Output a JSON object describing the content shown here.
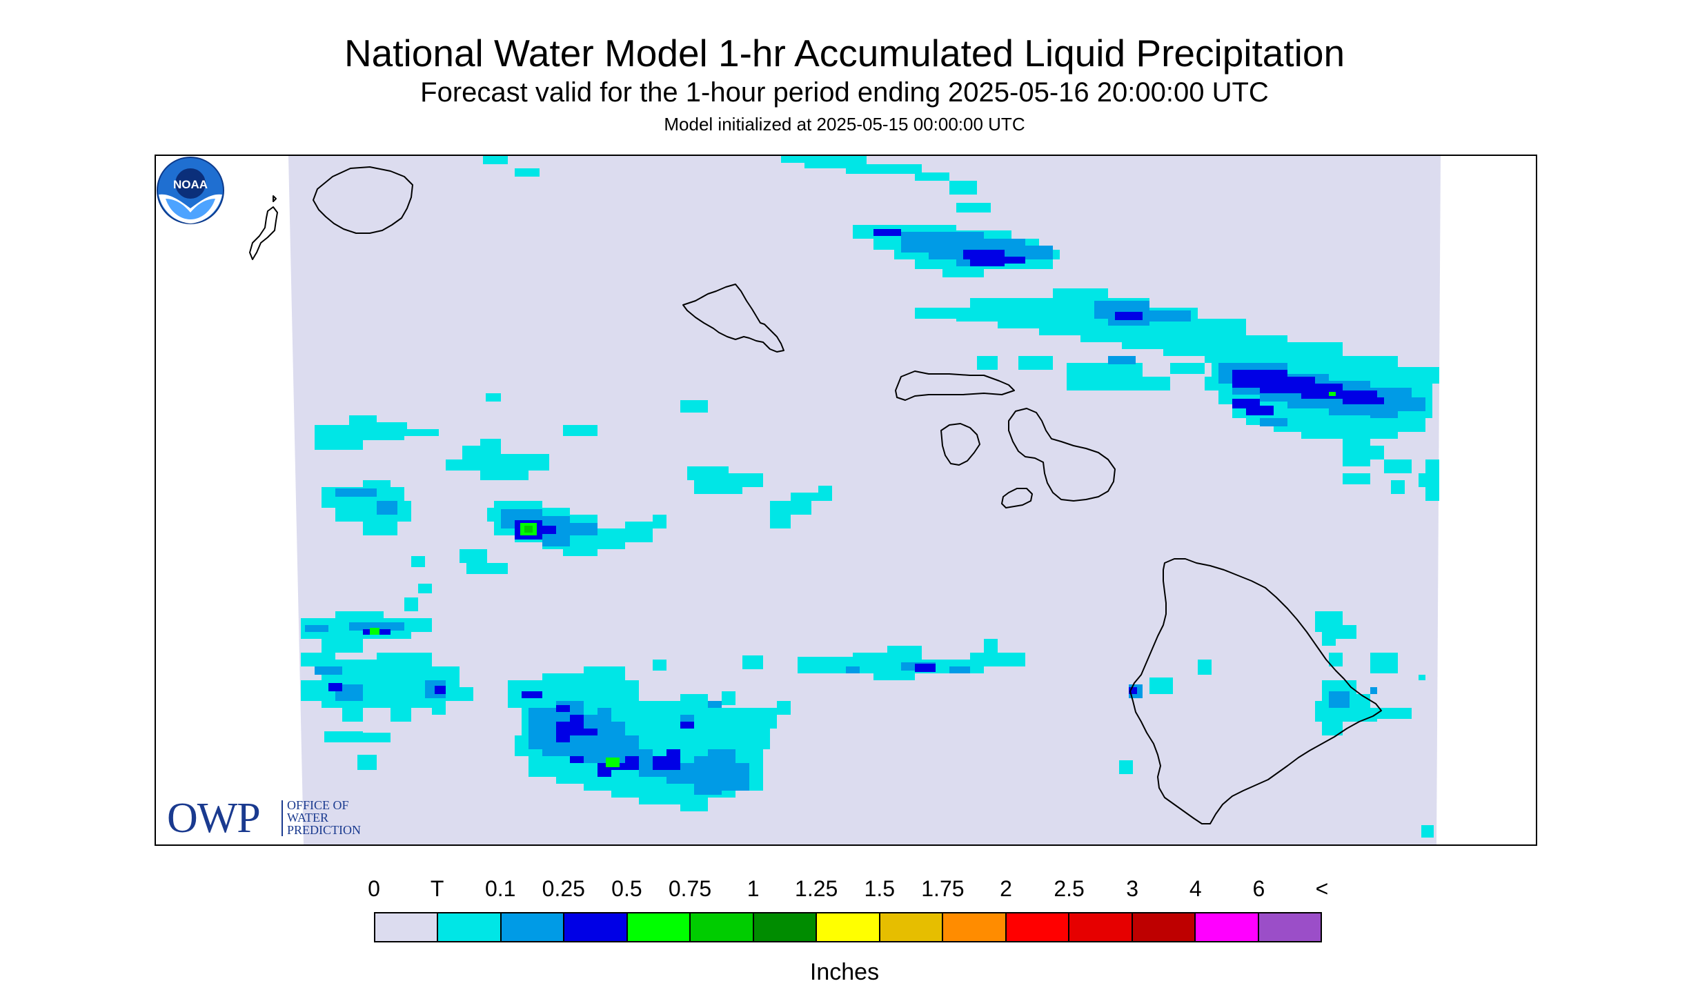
{
  "header": {
    "title": "National Water Model 1-hr Accumulated Liquid Precipitation",
    "subtitle": "Forecast valid for the 1-hour period ending 2025-05-16 20:00:00 UTC",
    "init_line": "Model initialized at 2025-05-15 00:00:00 UTC"
  },
  "map": {
    "background_color": "#dcdcef",
    "coastline_color": "#000000",
    "islands": [
      "Niihau",
      "Kauai",
      "Oahu",
      "Molokai",
      "Lanai",
      "Maui",
      "Kahoolawe",
      "Hawaii"
    ]
  },
  "logos": {
    "owp_big": "OWP",
    "owp_line1": "OFFICE OF",
    "owp_line2": "WATER",
    "owp_line3": "PREDICTION",
    "noaa": "NOAA",
    "owp_icon": "owp-logo-icon",
    "noaa_icon": "noaa-logo-icon"
  },
  "legend": {
    "units": "Inches",
    "labels": [
      "0",
      "T",
      "0.1",
      "0.25",
      "0.5",
      "0.75",
      "1",
      "1.25",
      "1.5",
      "1.75",
      "2",
      "2.5",
      "3",
      "4",
      "6",
      "<"
    ],
    "colors": [
      "#dcdcef",
      "#00e6e6",
      "#009be6",
      "#0000e6",
      "#00ff00",
      "#00cc00",
      "#008c00",
      "#ffff00",
      "#e6be00",
      "#ff8c00",
      "#ff0000",
      "#e60000",
      "#be0000",
      "#ff00ff",
      "#9b4ec8"
    ]
  }
}
